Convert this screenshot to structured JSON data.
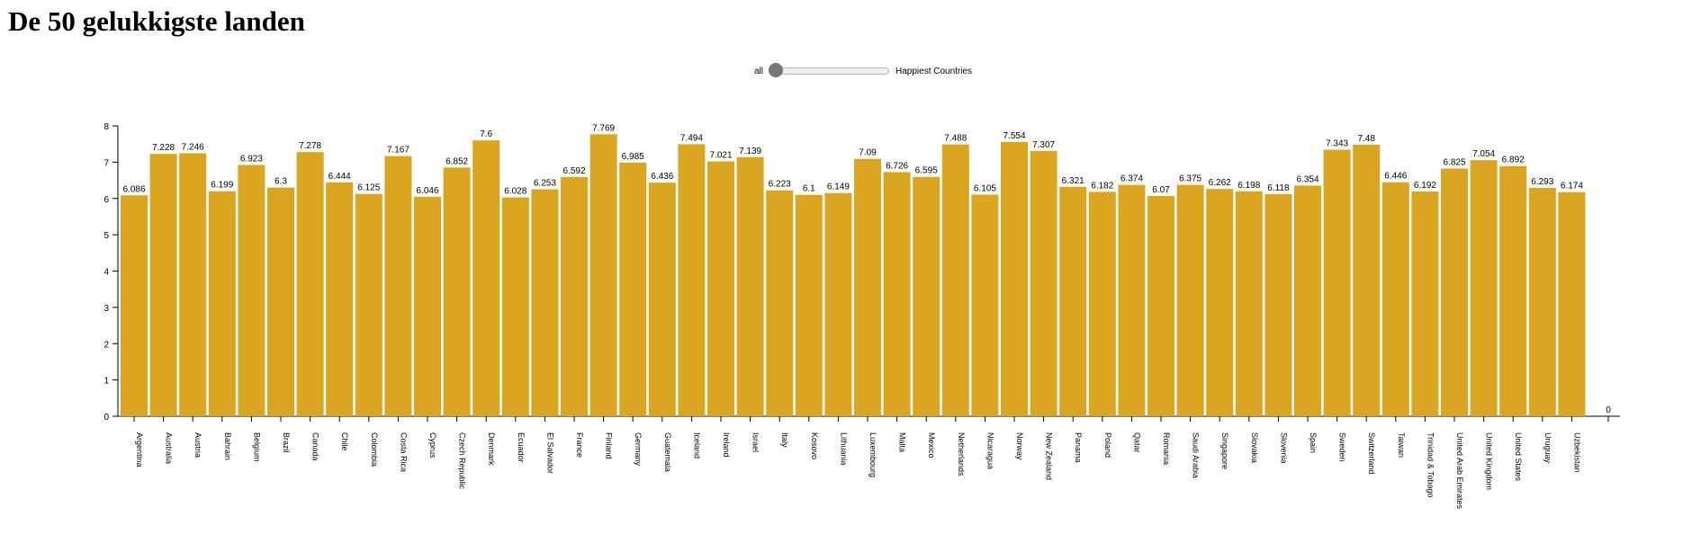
{
  "page": {
    "title": "De 50 gelukkigste landen"
  },
  "slider": {
    "left_label": "all",
    "right_label": "Happiest Countries",
    "value": 0
  },
  "colors": {
    "bar": "#daa520",
    "axis": "#000000"
  },
  "chart_data": {
    "type": "bar",
    "title": "",
    "xlabel": "",
    "ylabel": "",
    "ylim": [
      0,
      8
    ],
    "yticks": [
      0,
      1,
      2,
      3,
      4,
      5,
      6,
      7,
      8
    ],
    "categories": [
      "Argentina",
      "Australia",
      "Austria",
      "Bahrain",
      "Belgium",
      "Brazil",
      "Canada",
      "Chile",
      "Colombia",
      "Costa Rica",
      "Cyprus",
      "Czech Republic",
      "Denmark",
      "Ecuador",
      "El Salvador",
      "France",
      "Finland",
      "Germany",
      "Guatemala",
      "Iceland",
      "Ireland",
      "Israel",
      "Italy",
      "Kosovo",
      "Lithuania",
      "Luxembourg",
      "Malta",
      "Mexico",
      "Netherlands",
      "Nicaragua",
      "Norway",
      "New Zealand",
      "Panama",
      "Poland",
      "Qatar",
      "Romania",
      "Saudi Arabia",
      "Singapore",
      "Slovakia",
      "Slovenia",
      "Spain",
      "Sweden",
      "Switzerland",
      "Taiwan",
      "Trinidad & Tobago",
      "United Arab Emirates",
      "United Kingdom",
      "United States",
      "Uruguay",
      "Uzbekistan"
    ],
    "values": [
      6.086,
      7.228,
      7.246,
      6.199,
      6.923,
      6.3,
      7.278,
      6.444,
      6.125,
      7.167,
      6.046,
      6.852,
      7.6,
      6.028,
      6.253,
      6.592,
      7.769,
      6.985,
      6.436,
      7.494,
      7.021,
      7.139,
      6.223,
      6.1,
      6.149,
      7.09,
      6.726,
      6.595,
      7.488,
      6.105,
      7.554,
      7.307,
      6.321,
      6.182,
      6.374,
      6.07,
      6.375,
      6.262,
      6.198,
      6.118,
      6.354,
      7.343,
      7.48,
      6.446,
      6.192,
      6.825,
      7.054,
      6.892,
      6.293,
      6.174
    ],
    "trailing_value_label": "0",
    "grid": false,
    "legend": "none"
  }
}
